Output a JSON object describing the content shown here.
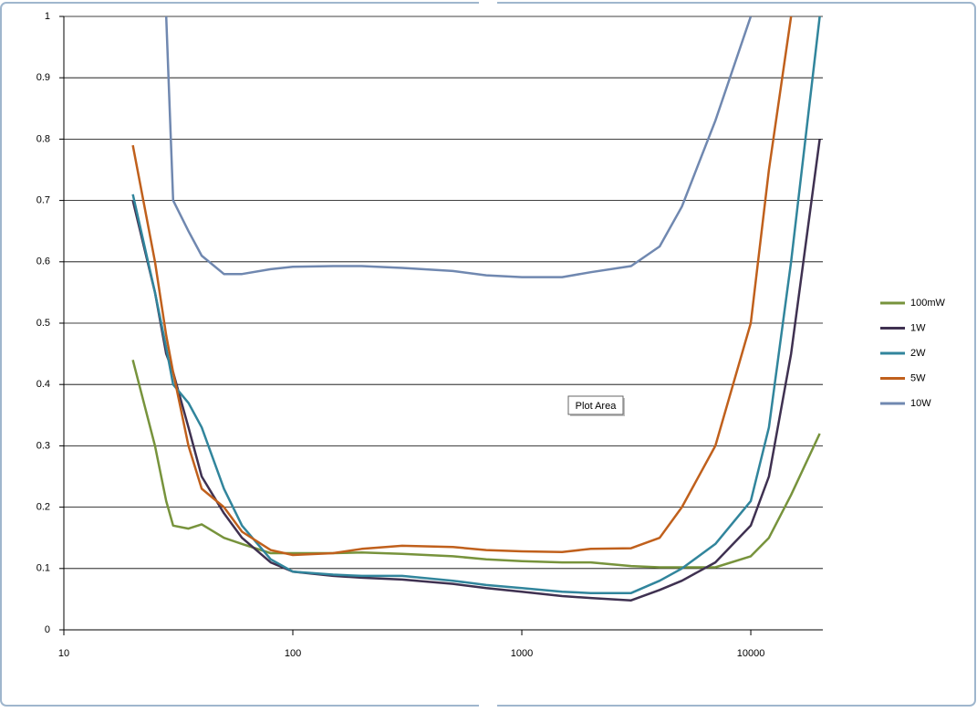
{
  "chart_data": {
    "type": "line",
    "tooltip": "Plot Area",
    "x": [
      20,
      25,
      28,
      30,
      35,
      40,
      50,
      60,
      80,
      100,
      150,
      200,
      300,
      500,
      700,
      1000,
      1500,
      2000,
      3000,
      4000,
      5000,
      7000,
      10000,
      12000,
      15000,
      20000
    ],
    "series": [
      {
        "name": "100mW",
        "color": "#77933c",
        "values": [
          0.44,
          0.3,
          0.21,
          0.17,
          0.165,
          0.172,
          0.15,
          0.14,
          0.125,
          0.125,
          0.125,
          0.126,
          0.124,
          0.12,
          0.115,
          0.112,
          0.11,
          0.11,
          0.104,
          0.102,
          0.102,
          0.102,
          0.12,
          0.15,
          0.22,
          0.32
        ]
      },
      {
        "name": "1W",
        "color": "#3f3151",
        "values": [
          0.7,
          0.55,
          0.45,
          0.42,
          0.33,
          0.25,
          0.19,
          0.15,
          0.11,
          0.095,
          0.088,
          0.085,
          0.082,
          0.075,
          0.068,
          0.062,
          0.055,
          0.052,
          0.048,
          0.065,
          0.08,
          0.11,
          0.17,
          0.25,
          0.45,
          0.8
        ]
      },
      {
        "name": "2W",
        "color": "#31859c",
        "values": [
          0.71,
          0.55,
          0.46,
          0.4,
          0.37,
          0.33,
          0.23,
          0.17,
          0.115,
          0.095,
          0.09,
          0.088,
          0.088,
          0.08,
          0.073,
          0.068,
          0.062,
          0.06,
          0.06,
          0.08,
          0.1,
          0.14,
          0.21,
          0.33,
          0.6,
          1.0
        ]
      },
      {
        "name": "5W",
        "color": "#c0601c",
        "values": [
          0.79,
          0.6,
          0.48,
          0.42,
          0.3,
          0.23,
          0.2,
          0.16,
          0.13,
          0.122,
          0.125,
          0.132,
          0.137,
          0.135,
          0.13,
          0.128,
          0.127,
          0.132,
          0.133,
          0.15,
          0.2,
          0.3,
          0.5,
          0.75,
          1.0,
          null
        ]
      },
      {
        "name": "10W",
        "color": "#7088b0",
        "values": [
          null,
          null,
          1.0,
          0.7,
          0.65,
          0.61,
          0.58,
          0.58,
          0.588,
          0.592,
          0.593,
          0.593,
          0.59,
          0.585,
          0.578,
          0.575,
          0.575,
          0.583,
          0.593,
          0.625,
          0.69,
          0.83,
          1.0,
          null,
          null,
          null
        ]
      }
    ],
    "log_x": true,
    "xlim": [
      10,
      20000
    ],
    "xticks": [
      10,
      100,
      1000,
      10000
    ],
    "ylim": [
      0,
      1
    ],
    "yticks": [
      0,
      0.1,
      0.2,
      0.3,
      0.4,
      0.5,
      0.6,
      0.7,
      0.8,
      0.9,
      1
    ],
    "grid": true,
    "legend": "right"
  }
}
